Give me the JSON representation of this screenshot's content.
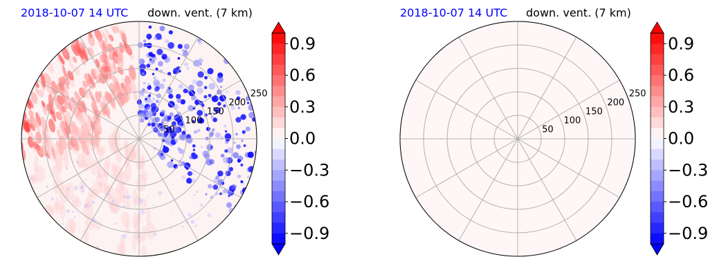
{
  "chart_data": [
    {
      "type": "heatmap",
      "projection": "polar",
      "title_left": "2018-10-07 14 UTC",
      "title_right": "down. vent. (7 km)",
      "radial_ticks": [
        50,
        100,
        150,
        200,
        250
      ],
      "radial_tick_labels": [
        "50",
        "100",
        "150",
        "200",
        "250"
      ],
      "r_max": 250,
      "angular_gridlines_deg": [
        0,
        30,
        60,
        90,
        120,
        150,
        180,
        210,
        240,
        270,
        300,
        330
      ],
      "grid": true,
      "colorbar": {
        "cmap": "bwr",
        "vmin": -1.0,
        "vmax": 1.0,
        "levels": 20,
        "extend": "both",
        "ticks": [
          -0.9,
          -0.6,
          -0.3,
          0.0,
          0.3,
          0.6,
          0.9
        ],
        "tick_labels": [
          "−0.9",
          "−0.6",
          "−0.3",
          "0.0",
          "0.3",
          "0.6",
          "0.9"
        ],
        "position": "right"
      },
      "field_description": "positive values (red) concentrated in north-west quadrant; strong negative values (blue) in north-east and east sectors; remainder near 0 with slight positive bias"
    },
    {
      "type": "heatmap",
      "projection": "polar",
      "title_left": "2018-10-07 14 UTC",
      "title_right": "down. vent. (7 km)",
      "radial_ticks": [
        50,
        100,
        150,
        200,
        250
      ],
      "radial_tick_labels": [
        "50",
        "100",
        "150",
        "200",
        "250"
      ],
      "r_max": 250,
      "angular_gridlines_deg": [
        0,
        30,
        60,
        90,
        120,
        150,
        180,
        210,
        240,
        270,
        300,
        330
      ],
      "grid": true,
      "colorbar": {
        "cmap": "bwr",
        "vmin": -1.0,
        "vmax": 1.0,
        "levels": 20,
        "extend": "both",
        "ticks": [
          -0.9,
          -0.6,
          -0.3,
          0.0,
          0.3,
          0.6,
          0.9
        ],
        "tick_labels": [
          "−0.9",
          "−0.6",
          "−0.3",
          "0.0",
          "0.3",
          "0.6",
          "0.9"
        ],
        "position": "right"
      },
      "field_value": 0.03,
      "field_description": "uniform field, very slightly positive everywhere"
    }
  ],
  "colors": {
    "date_text": "#0000ff",
    "text": "#000000",
    "grid": "#b0b0b0",
    "outline": "#000000",
    "neutral_fill": "#fdf0f0"
  }
}
